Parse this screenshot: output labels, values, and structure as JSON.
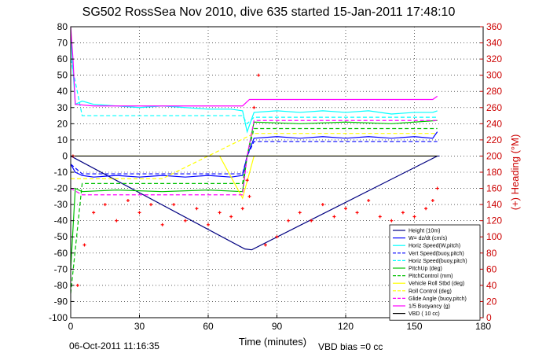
{
  "chart_data": {
    "type": "line",
    "title": "SG502 RossSea Nov 2010, dive 635 started 15-Jan-2011 17:48:10",
    "xlabel": "Time (minutes)",
    "ylabel_right": "(+) Heading (°M)",
    "footer_left": "06-Oct-2011 11:16:35",
    "footer_right": "VBD bias =0 cc",
    "xlim": [
      0,
      180
    ],
    "ylim_left": [
      -100,
      80
    ],
    "ylim_right": [
      0,
      360
    ],
    "x_ticks": [
      0,
      30,
      60,
      90,
      120,
      150,
      180
    ],
    "y_ticks_left": [
      -100,
      -90,
      -80,
      -70,
      -60,
      -50,
      -40,
      -30,
      -20,
      -10,
      0,
      10,
      20,
      30,
      40,
      50,
      60,
      70,
      80
    ],
    "y_ticks_right": [
      0,
      20,
      40,
      60,
      80,
      100,
      120,
      140,
      160,
      180,
      200,
      220,
      240,
      260,
      280,
      300,
      320,
      340,
      360
    ],
    "grid": true,
    "legend_position": "lower-right",
    "series": [
      {
        "name": "Height (10m)",
        "color": "#000080",
        "style": "solid",
        "x": [
          0,
          76,
          79,
          160,
          161
        ],
        "y": [
          0,
          -57.5,
          -58,
          0,
          0
        ]
      },
      {
        "name": "W= dz/dt (cm/s)",
        "color": "#0000ff",
        "style": "solid",
        "x": [
          0,
          2,
          5,
          10,
          20,
          30,
          40,
          50,
          60,
          70,
          75,
          77,
          80,
          90,
          100,
          110,
          120,
          130,
          140,
          150,
          158,
          160
        ],
        "y": [
          -5,
          -10,
          -12,
          -13,
          -12,
          -13,
          -12,
          -13,
          -12,
          -13,
          -12,
          0,
          11,
          12,
          11,
          12,
          11,
          12,
          11,
          12,
          11,
          15
        ]
      },
      {
        "name": "Horiz Speed(W,pitch)",
        "color": "#00ffff",
        "style": "solid",
        "x": [
          0,
          2,
          5,
          10,
          20,
          30,
          40,
          50,
          60,
          70,
          75,
          77,
          80,
          90,
          100,
          110,
          120,
          130,
          140,
          150,
          158,
          160
        ],
        "y": [
          75,
          32,
          34,
          32,
          31,
          30,
          31,
          30,
          29,
          29,
          28,
          15,
          27,
          28,
          27,
          28,
          27,
          28,
          26,
          27,
          27,
          28
        ]
      },
      {
        "name": "Vert Speed(buoy,pitch)",
        "color": "#0000ff",
        "style": "dashed",
        "x": [
          0,
          5,
          20,
          40,
          60,
          75,
          77,
          80,
          100,
          120,
          140,
          160
        ],
        "y": [
          -5,
          -11,
          -11,
          -11,
          -11,
          -11,
          0,
          9,
          9,
          9,
          9,
          9
        ]
      },
      {
        "name": "Horiz Speed(buoy,pitch)",
        "color": "#00ffff",
        "style": "dashed",
        "x": [
          0,
          5,
          20,
          40,
          60,
          75,
          77,
          80,
          100,
          120,
          140,
          160
        ],
        "y": [
          60,
          25,
          25,
          25,
          25,
          25,
          20,
          24,
          24,
          24,
          24,
          24
        ]
      },
      {
        "name": "PitchUp (deg)",
        "color": "#00c000",
        "style": "solid",
        "x": [
          0,
          2,
          5,
          20,
          40,
          60,
          75,
          77,
          80,
          100,
          120,
          140,
          160
        ],
        "y": [
          -70,
          -20,
          -22,
          -21,
          -22,
          -21,
          -22,
          0,
          21,
          20,
          21,
          20,
          22
        ]
      },
      {
        "name": "PitchControl (mm)",
        "color": "#00c000",
        "style": "dashed",
        "x": [
          0,
          5,
          20,
          40,
          60,
          75,
          77,
          80,
          100,
          120,
          140,
          160
        ],
        "y": [
          -85,
          -17,
          -17,
          -17,
          -17,
          -17,
          0,
          17,
          17,
          17,
          17,
          17
        ]
      },
      {
        "name": "Vehicle Roll Stbd (deg)",
        "color": "#ffff00",
        "style": "solid",
        "x": [
          0,
          5,
          15,
          25,
          35,
          45,
          55,
          65,
          75,
          80,
          90,
          100,
          110,
          120,
          130,
          140,
          150,
          160
        ],
        "y": [
          0,
          0,
          0,
          0,
          0,
          0,
          0,
          0,
          -26,
          0,
          0,
          0,
          0,
          0,
          0,
          0,
          0,
          0
        ]
      },
      {
        "name": "Roll Control (deg)",
        "color": "#ffff00",
        "style": "dashed",
        "x": [
          0,
          40,
          80,
          120,
          160
        ],
        "y": [
          -14,
          -14,
          14,
          14,
          14
        ]
      },
      {
        "name": "Glide Angle (buoy,pitch)",
        "color": "#ff00ff",
        "style": "dashed",
        "x": [
          0,
          5,
          40,
          75,
          77,
          80,
          120,
          160
        ],
        "y": [
          -20,
          -24,
          -24,
          -24,
          0,
          22,
          22,
          22
        ]
      },
      {
        "name": "1/5 Buoyancy (g)",
        "color": "#ff00ff",
        "style": "solid",
        "x": [
          0,
          1,
          2,
          10,
          40,
          75,
          78,
          80,
          120,
          158,
          160
        ],
        "y": [
          80,
          60,
          32,
          31,
          31,
          31,
          35,
          35,
          35,
          35,
          37
        ]
      },
      {
        "name": "VBD ( 10 cc)",
        "color": "#000000",
        "style": "solid",
        "x": [
          0,
          2,
          160
        ],
        "y": [
          0,
          0,
          0
        ]
      },
      {
        "name": "Heading",
        "color": "#ff0000",
        "style": "markers",
        "axis": "right",
        "x": [
          1,
          3,
          6,
          10,
          15,
          20,
          25,
          30,
          35,
          40,
          45,
          50,
          55,
          60,
          65,
          70,
          75,
          77,
          78,
          80,
          82,
          85,
          90,
          95,
          100,
          105,
          110,
          115,
          120,
          125,
          130,
          135,
          140,
          145,
          150,
          155,
          158,
          160
        ],
        "y": [
          200,
          40,
          90,
          130,
          140,
          120,
          145,
          130,
          140,
          115,
          140,
          120,
          135,
          115,
          130,
          125,
          135,
          170,
          150,
          260,
          300,
          90,
          100,
          120,
          130,
          120,
          140,
          125,
          135,
          130,
          145,
          125,
          120,
          130,
          125,
          135,
          145,
          160
        ]
      }
    ]
  }
}
